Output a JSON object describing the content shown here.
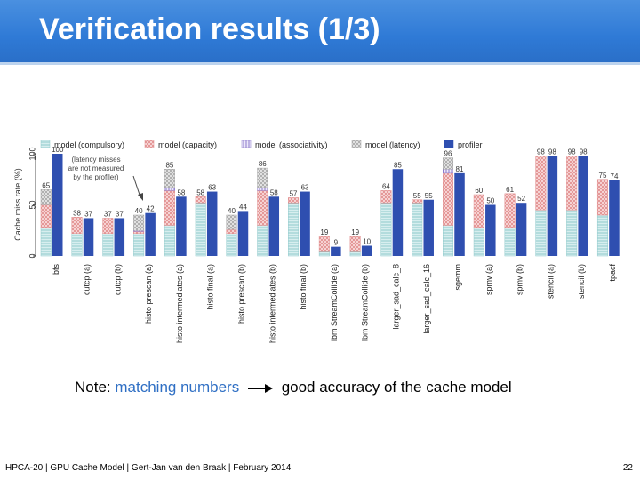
{
  "slide": {
    "title": "Verification results (1/3)",
    "note_prefix": "Note:",
    "note_highlight": "matching numbers",
    "note_suffix": "good accuracy of the cache model",
    "footer": "HPCA-20 | GPU Cache Model | Gert-Jan van den Braak | February 2014",
    "page_number": "22"
  },
  "colors": {
    "title_bar": "#3582da",
    "compulsory": "#9fd6d8",
    "capacity": "#f29c9c",
    "associativity": "#9b8ad6",
    "latency": "#c4c4c4",
    "profiler": "#2f4fb0",
    "highlight_text": "#2f6fc4"
  },
  "chart_data": {
    "type": "bar",
    "ylabel": "Cache miss rate (%)",
    "ylim": [
      0,
      100
    ],
    "yticks": [
      "0",
      "50",
      "100"
    ],
    "legend_position": "top",
    "legend": [
      "model (compulsory)",
      "model (capacity)",
      "model (associativity)",
      "model (latency)",
      "profiler"
    ],
    "annotation": "(latency misses are not measured by the profiler)",
    "categories": [
      "bfs",
      "cutcp (a)",
      "cutcp (b)",
      "histo prescan (a)",
      "histo intermediates (a)",
      "histo final (a)",
      "histo prescan (b)",
      "histo intermediates (b)",
      "histo final (b)",
      "lbm StreamCollide (a)",
      "lbm StreamCollide (b)",
      "larger_sad_calc_8",
      "larger_sad_calc_16",
      "sgemm",
      "spmv (a)",
      "spmv (b)",
      "stencil (a)",
      "stencil (b)",
      "tpacf"
    ],
    "model_labels": [
      65,
      38,
      37,
      40,
      85,
      58,
      40,
      86,
      57,
      19,
      19,
      64,
      55,
      96,
      60,
      61,
      98,
      98,
      75
    ],
    "profiler_values": [
      100,
      37,
      37,
      42,
      58,
      63,
      44,
      58,
      63,
      9,
      10,
      85,
      55,
      81,
      50,
      52,
      98,
      98,
      74
    ],
    "series": [
      {
        "name": "model (compulsory)",
        "values": [
          28,
          22,
          22,
          22,
          30,
          52,
          22,
          30,
          52,
          5,
          5,
          52,
          52,
          30,
          28,
          28,
          45,
          45,
          40
        ]
      },
      {
        "name": "model (capacity)",
        "values": [
          22,
          16,
          15,
          2,
          34,
          6,
          4,
          34,
          5,
          14,
          14,
          12,
          3,
          51,
          32,
          33,
          53,
          53,
          35
        ]
      },
      {
        "name": "model (associativity)",
        "values": [
          0,
          0,
          0,
          1,
          3,
          0,
          0,
          3,
          0,
          0,
          0,
          0,
          0,
          4,
          0,
          0,
          0,
          0,
          0
        ]
      },
      {
        "name": "model (latency)",
        "values": [
          15,
          0,
          0,
          15,
          18,
          0,
          14,
          19,
          0,
          0,
          0,
          0,
          0,
          11,
          0,
          0,
          0,
          0,
          0
        ]
      },
      {
        "name": "profiler",
        "values": [
          100,
          37,
          37,
          42,
          58,
          63,
          44,
          58,
          63,
          9,
          10,
          85,
          55,
          81,
          50,
          52,
          98,
          98,
          74
        ]
      }
    ]
  }
}
